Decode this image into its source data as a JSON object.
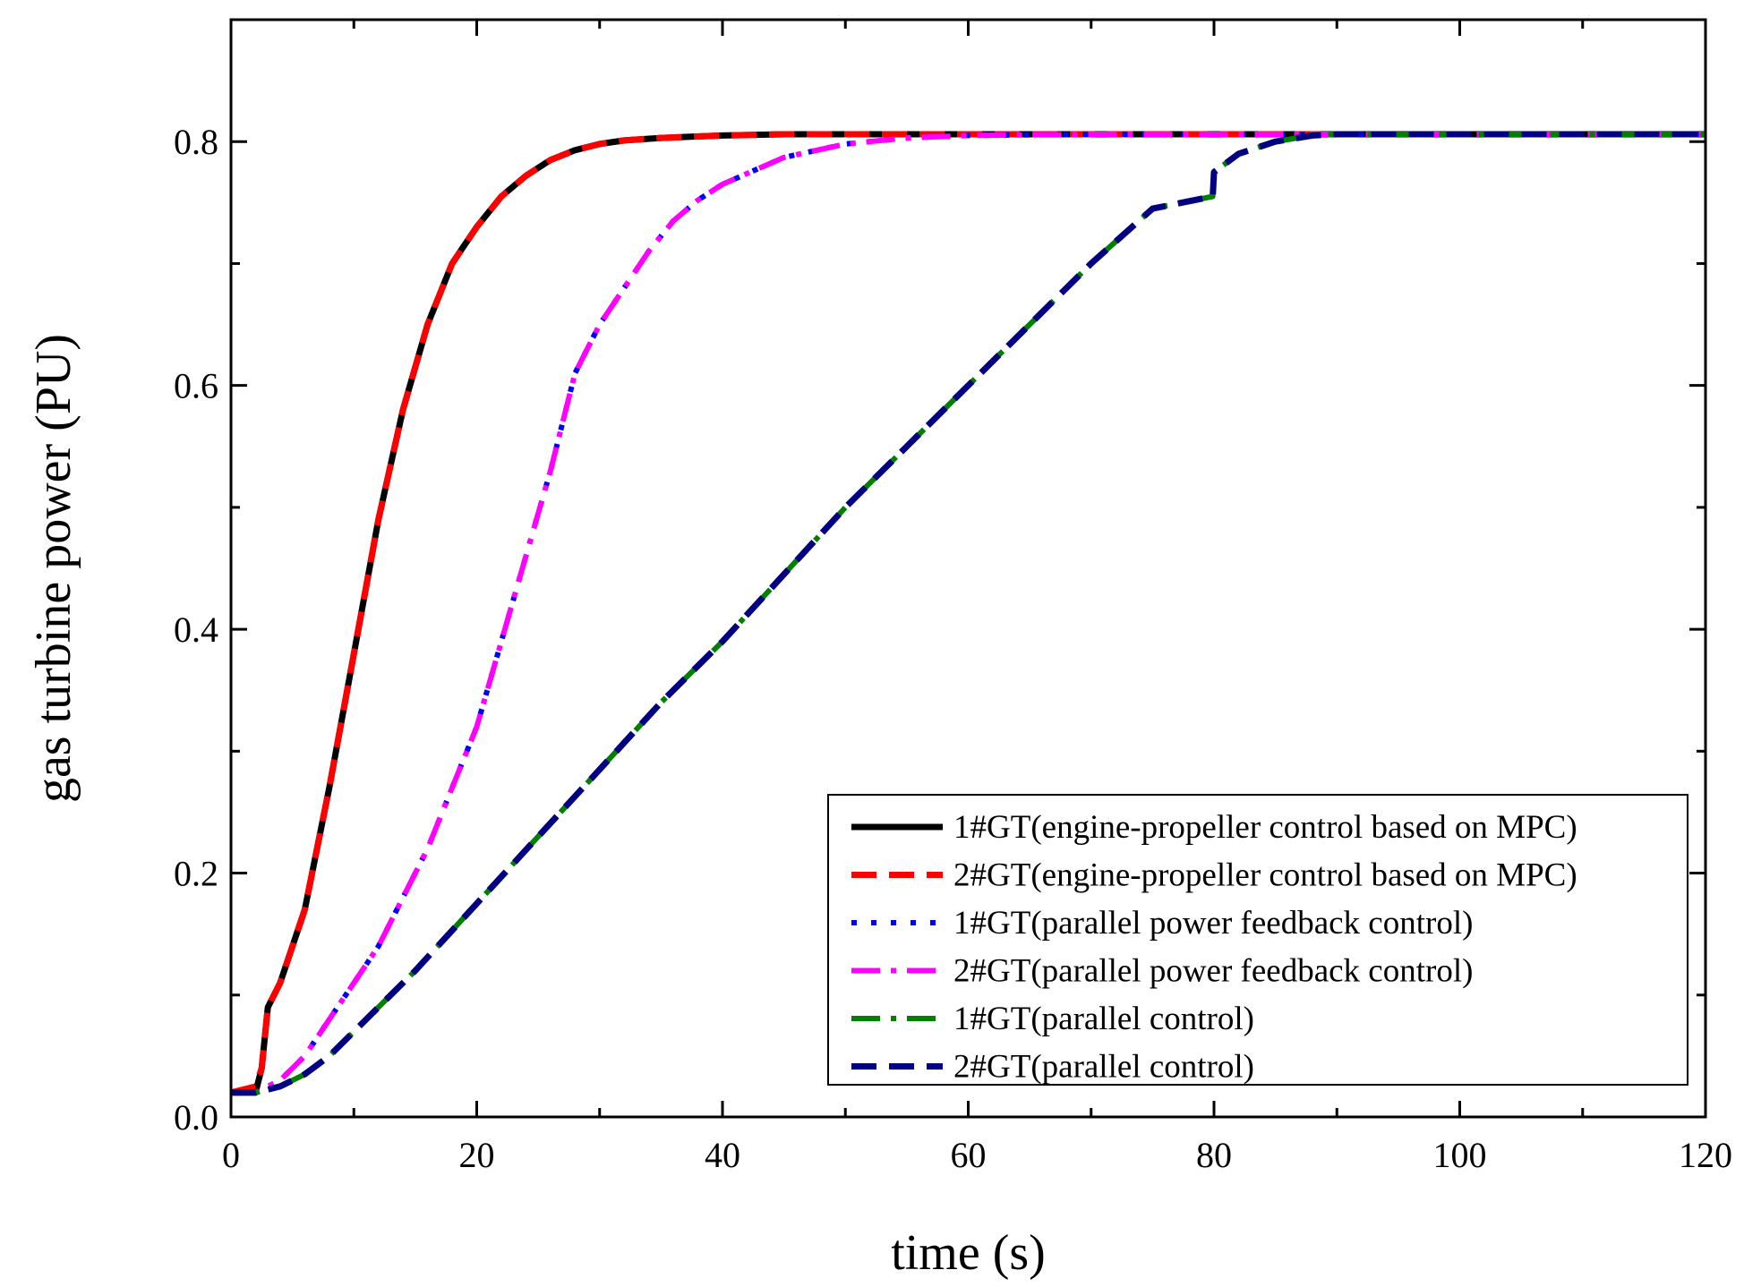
{
  "chart_data": {
    "type": "line",
    "title": "",
    "xlabel": "time (s)",
    "ylabel": "gas turbine power (PU)",
    "xlim": [
      0,
      120
    ],
    "ylim": [
      0,
      0.9
    ],
    "xticks": [
      0,
      20,
      40,
      60,
      80,
      100,
      120
    ],
    "xtick_labels": [
      "0",
      "20",
      "40",
      "60",
      "80",
      "100",
      "120"
    ],
    "yticks": [
      0.0,
      0.2,
      0.4,
      0.6,
      0.8
    ],
    "ytick_labels": [
      "0.0",
      "0.2",
      "0.4",
      "0.6",
      "0.8"
    ],
    "grid": false,
    "legend_position": "bottom-right",
    "series": [
      {
        "name": "1#GT(engine-propeller control based on MPC)",
        "color": "#000000",
        "style": "solid",
        "x": [
          0,
          2,
          2.5,
          3,
          4,
          6,
          8,
          10,
          12,
          14,
          16,
          18,
          20,
          22,
          24,
          26,
          28,
          30,
          32,
          35,
          40,
          45,
          50,
          60,
          80,
          100,
          120
        ],
        "y": [
          0.02,
          0.02,
          0.04,
          0.09,
          0.11,
          0.17,
          0.27,
          0.38,
          0.49,
          0.58,
          0.65,
          0.7,
          0.73,
          0.755,
          0.772,
          0.785,
          0.793,
          0.798,
          0.801,
          0.803,
          0.805,
          0.806,
          0.806,
          0.806,
          0.806,
          0.806,
          0.806
        ]
      },
      {
        "name": "2#GT(engine-propeller control based on MPC)",
        "color": "#ff0000",
        "style": "dashed",
        "x": [
          0,
          2,
          2.5,
          3,
          4,
          6,
          8,
          10,
          12,
          14,
          16,
          18,
          20,
          22,
          24,
          26,
          28,
          30,
          32,
          35,
          40,
          45,
          50,
          60,
          80,
          100,
          120
        ],
        "y": [
          0.02,
          0.025,
          0.04,
          0.09,
          0.11,
          0.17,
          0.27,
          0.38,
          0.49,
          0.58,
          0.65,
          0.7,
          0.73,
          0.755,
          0.772,
          0.785,
          0.793,
          0.798,
          0.801,
          0.803,
          0.805,
          0.806,
          0.806,
          0.806,
          0.806,
          0.806,
          0.806
        ]
      },
      {
        "name": "1#GT(parallel power feedback control)",
        "color": "#0000ff",
        "style": "dotted",
        "x": [
          0,
          2,
          4,
          6,
          8,
          10,
          12,
          14,
          16,
          18,
          20,
          22,
          24,
          26,
          27,
          28,
          29,
          30,
          32,
          34,
          36,
          38,
          40,
          45,
          50,
          55,
          60,
          70,
          80,
          100,
          120
        ],
        "y": [
          0.02,
          0.02,
          0.03,
          0.05,
          0.08,
          0.11,
          0.14,
          0.18,
          0.22,
          0.27,
          0.32,
          0.39,
          0.46,
          0.53,
          0.57,
          0.61,
          0.63,
          0.65,
          0.68,
          0.71,
          0.735,
          0.752,
          0.765,
          0.787,
          0.798,
          0.803,
          0.805,
          0.806,
          0.806,
          0.806,
          0.806
        ]
      },
      {
        "name": "2#GT(parallel power feedback control)",
        "color": "#ff00ff",
        "style": "dash-dot",
        "x": [
          0,
          2,
          4,
          6,
          8,
          10,
          12,
          14,
          16,
          18,
          20,
          22,
          24,
          26,
          27,
          28,
          29,
          30,
          32,
          34,
          36,
          38,
          40,
          45,
          50,
          55,
          60,
          70,
          80,
          100,
          120
        ],
        "y": [
          0.02,
          0.02,
          0.03,
          0.05,
          0.08,
          0.11,
          0.14,
          0.18,
          0.22,
          0.27,
          0.32,
          0.39,
          0.46,
          0.53,
          0.57,
          0.61,
          0.63,
          0.65,
          0.68,
          0.71,
          0.735,
          0.752,
          0.765,
          0.787,
          0.798,
          0.803,
          0.805,
          0.806,
          0.806,
          0.806,
          0.806
        ]
      },
      {
        "name": "1#GT(parallel control)",
        "color": "#008000",
        "style": "dash-dot",
        "x": [
          0,
          2,
          4,
          6,
          8,
          10,
          12,
          15,
          20,
          25,
          30,
          35,
          40,
          45,
          50,
          55,
          60,
          65,
          70,
          75,
          79.9,
          80,
          82,
          85,
          88,
          90,
          100,
          120
        ],
        "y": [
          0.02,
          0.02,
          0.025,
          0.035,
          0.05,
          0.07,
          0.09,
          0.12,
          0.175,
          0.23,
          0.285,
          0.34,
          0.39,
          0.445,
          0.5,
          0.55,
          0.6,
          0.65,
          0.7,
          0.745,
          0.755,
          0.775,
          0.79,
          0.8,
          0.805,
          0.806,
          0.806,
          0.806
        ]
      },
      {
        "name": "2#GT(parallel control)",
        "color": "#000080",
        "style": "dashed",
        "x": [
          0,
          2,
          4,
          6,
          8,
          10,
          12,
          15,
          20,
          25,
          30,
          35,
          40,
          45,
          50,
          55,
          60,
          65,
          70,
          75,
          79.9,
          80,
          82,
          85,
          88,
          90,
          100,
          120
        ],
        "y": [
          0.02,
          0.02,
          0.025,
          0.035,
          0.05,
          0.07,
          0.09,
          0.12,
          0.175,
          0.23,
          0.285,
          0.34,
          0.39,
          0.445,
          0.5,
          0.55,
          0.6,
          0.65,
          0.7,
          0.745,
          0.755,
          0.775,
          0.79,
          0.8,
          0.805,
          0.806,
          0.806,
          0.806
        ]
      }
    ]
  }
}
